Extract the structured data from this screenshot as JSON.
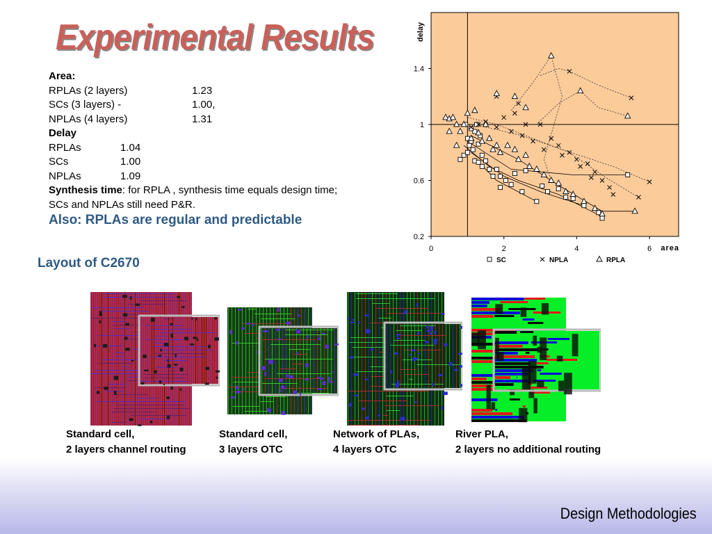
{
  "slide": {
    "title": "Experimental Results",
    "footer": "Design Methodologies"
  },
  "stats": {
    "area_heading": "Area:",
    "area_rows": [
      {
        "label": "RPLAs (2 layers)",
        "value": "1.23"
      },
      {
        "label": "SCs (3 layers) -",
        "value": "1.00,"
      },
      {
        "label": "NPLAs (4 layers)",
        "value": "1.31"
      }
    ],
    "delay_heading": "Delay",
    "delay_rows": [
      {
        "label": "RPLAs",
        "value": "1.04"
      },
      {
        "label": "SCs",
        "value": "1.00"
      },
      {
        "label": "NPLAs",
        "value": "1.09"
      }
    ],
    "synthesis_label": "Synthesis time",
    "synthesis_text": ": for RPLA , synthesis time equals design time;",
    "synthesis_text2": "SCs and NPLAs still need P&R.",
    "also": "Also: RPLAs are regular and predictable"
  },
  "layout_section": {
    "title": "Layout of C2670",
    "captions": [
      {
        "line1": "Standard cell,",
        "line2": "2 layers channel routing"
      },
      {
        "line1": "Standard cell,",
        "line2": "3 layers OTC"
      },
      {
        "line1": "Network of PLAs,",
        "line2": "4 layers OTC"
      },
      {
        "line1": "River PLA,",
        "line2": "2 layers no additional routing"
      }
    ]
  },
  "chart_data": {
    "type": "scatter",
    "xlabel": "area",
    "ylabel": "delay",
    "xlim": [
      0,
      6.8
    ],
    "ylim": [
      0.2,
      1.8
    ],
    "xticks": [
      0,
      2,
      4,
      6
    ],
    "yticks": [
      0.2,
      0.6,
      1,
      1.4
    ],
    "x_tick_labels": [
      "0",
      "2",
      "4",
      "6"
    ],
    "y_tick_labels": [
      "0.2",
      "0.6",
      "1",
      "1.4"
    ],
    "reference_lines": {
      "x": 1,
      "y": 1
    },
    "background_color": "#fccb9a",
    "legend_position": "bottom",
    "series": [
      {
        "name": "SC",
        "marker": "square",
        "points": [
          [
            0.8,
            0.75
          ],
          [
            0.9,
            0.78
          ],
          [
            1,
            0.8
          ],
          [
            1.05,
            0.85
          ],
          [
            1.1,
            0.88
          ],
          [
            1.15,
            0.82
          ],
          [
            1.2,
            0.95
          ],
          [
            1.2,
            0.74
          ],
          [
            1.3,
            0.86
          ],
          [
            1.3,
            0.73
          ],
          [
            1.4,
            0.78
          ],
          [
            1.4,
            0.7
          ],
          [
            1.5,
            0.74
          ],
          [
            1.6,
            0.68
          ],
          [
            1.7,
            0.63
          ],
          [
            1.8,
            0.68
          ],
          [
            1.9,
            0.55
          ],
          [
            1.9,
            0.63
          ],
          [
            2.05,
            0.6
          ],
          [
            2.2,
            0.57
          ],
          [
            2.3,
            0.65
          ],
          [
            2.5,
            0.52
          ],
          [
            2.6,
            0.67
          ],
          [
            2.9,
            0.45
          ],
          [
            3.05,
            0.56
          ],
          [
            3.2,
            0.52
          ],
          [
            3.5,
            0.54
          ],
          [
            3.7,
            0.48
          ],
          [
            3.9,
            0.47
          ],
          [
            4.2,
            0.42
          ],
          [
            4.6,
            0.37
          ],
          [
            4.7,
            0.33
          ],
          [
            5.4,
            0.64
          ],
          [
            1.0,
            0.9
          ],
          [
            1.1,
            0.97
          ],
          [
            1.25,
            1.0
          ],
          [
            0.95,
            1.0
          ],
          [
            1.35,
            0.92
          ]
        ]
      },
      {
        "name": "NPLA",
        "marker": "x",
        "points": [
          [
            1.1,
            0.98
          ],
          [
            1.3,
            1.0
          ],
          [
            1.5,
            1.02
          ],
          [
            1.8,
            0.98
          ],
          [
            2,
            1.05
          ],
          [
            2.2,
            0.95
          ],
          [
            2.3,
            1.08
          ],
          [
            2.5,
            0.92
          ],
          [
            2.6,
            1.0
          ],
          [
            2.8,
            0.88
          ],
          [
            3,
            1.0
          ],
          [
            3.1,
            0.82
          ],
          [
            3.3,
            0.9
          ],
          [
            3.5,
            0.85
          ],
          [
            3.6,
            0.78
          ],
          [
            3.8,
            0.8
          ],
          [
            4.0,
            0.75
          ],
          [
            4.1,
            0.7
          ],
          [
            4.3,
            0.72
          ],
          [
            4.5,
            0.66
          ],
          [
            4.7,
            0.6
          ],
          [
            4.9,
            0.55
          ],
          [
            5.0,
            0.5
          ],
          [
            5.7,
            0.48
          ],
          [
            6,
            0.59
          ],
          [
            3.8,
            1.38
          ],
          [
            5.5,
            1.19
          ],
          [
            1.8,
            1.2
          ],
          [
            2.4,
            1.15
          ],
          [
            4.4,
            0.62
          ]
        ]
      },
      {
        "name": "RPLA",
        "marker": "triangle",
        "points": [
          [
            0.4,
            1.05
          ],
          [
            0.5,
            1.04
          ],
          [
            0.6,
            1.05
          ],
          [
            0.7,
            1.0
          ],
          [
            0.8,
            0.95
          ],
          [
            0.9,
            1.0
          ],
          [
            1.0,
            1.08
          ],
          [
            1.1,
            0.9
          ],
          [
            1.2,
            1.1
          ],
          [
            1.3,
            0.94
          ],
          [
            1.4,
            0.88
          ],
          [
            1.5,
            1.0
          ],
          [
            1.6,
            0.9
          ],
          [
            1.7,
            0.82
          ],
          [
            1.8,
            0.85
          ],
          [
            1.9,
            0.8
          ],
          [
            2.1,
            0.85
          ],
          [
            2.3,
            0.82
          ],
          [
            2.4,
            0.75
          ],
          [
            2.6,
            0.78
          ],
          [
            2.7,
            0.7
          ],
          [
            2.9,
            0.68
          ],
          [
            3.1,
            0.64
          ],
          [
            3.3,
            0.6
          ],
          [
            3.5,
            0.58
          ],
          [
            3.7,
            0.52
          ],
          [
            3.9,
            0.5
          ],
          [
            4.2,
            0.45
          ],
          [
            4.5,
            0.4
          ],
          [
            4.7,
            0.36
          ],
          [
            5.6,
            0.38
          ],
          [
            3.3,
            1.49
          ],
          [
            4.1,
            1.24
          ],
          [
            5.4,
            1.06
          ],
          [
            1.8,
            1.22
          ],
          [
            2.3,
            1.2
          ],
          [
            2.6,
            1.12
          ],
          [
            0.7,
            0.85
          ],
          [
            0.5,
            0.95
          ]
        ]
      }
    ],
    "traces": [
      {
        "style": "solid",
        "points": [
          [
            0.9,
            0.85
          ],
          [
            1.6,
            0.7
          ],
          [
            2.4,
            0.6
          ],
          [
            3.5,
            0.5
          ],
          [
            4.7,
            0.34
          ]
        ]
      },
      {
        "style": "solid",
        "points": [
          [
            1.1,
            0.8
          ],
          [
            2.0,
            0.63
          ],
          [
            3.0,
            0.52
          ],
          [
            4.2,
            0.42
          ]
        ]
      },
      {
        "style": "solid",
        "points": [
          [
            1.0,
            0.88
          ],
          [
            2.2,
            0.68
          ],
          [
            3.9,
            0.64
          ],
          [
            5.4,
            0.64
          ]
        ]
      },
      {
        "style": "solid",
        "points": [
          [
            1.2,
            0.76
          ],
          [
            1.8,
            0.6
          ],
          [
            2.9,
            0.45
          ]
        ]
      },
      {
        "style": "dotted",
        "points": [
          [
            1.0,
            1.05
          ],
          [
            1.8,
            1.0
          ],
          [
            2.8,
            0.9
          ],
          [
            3.8,
            0.8
          ],
          [
            4.8,
            0.62
          ],
          [
            5.7,
            0.48
          ]
        ]
      },
      {
        "style": "dotted",
        "points": [
          [
            1.2,
            1.0
          ],
          [
            2.5,
            0.92
          ],
          [
            3.6,
            0.82
          ],
          [
            5.0,
            0.7
          ],
          [
            6.0,
            0.59
          ]
        ]
      },
      {
        "style": "dotted",
        "points": [
          [
            2.2,
            1.1
          ],
          [
            2.8,
            1.3
          ],
          [
            3.3,
            1.49
          ],
          [
            3.6,
            1.2
          ],
          [
            3.1,
            0.75
          ],
          [
            3.3,
            0.6
          ]
        ]
      },
      {
        "style": "dotted",
        "points": [
          [
            3.0,
            1.35
          ],
          [
            3.5,
            1.4
          ],
          [
            3.8,
            1.38
          ],
          [
            4.6,
            1.28
          ],
          [
            5.5,
            1.19
          ]
        ]
      },
      {
        "style": "dotted",
        "points": [
          [
            2.9,
            1.0
          ],
          [
            3.5,
            1.15
          ],
          [
            4.1,
            1.24
          ],
          [
            4.6,
            1.12
          ],
          [
            5.4,
            1.06
          ]
        ]
      },
      {
        "style": "solid",
        "points": [
          [
            1.1,
            0.92
          ],
          [
            2.4,
            0.75
          ],
          [
            3.6,
            0.55
          ],
          [
            4.7,
            0.38
          ],
          [
            5.6,
            0.38
          ]
        ]
      }
    ]
  },
  "layout_images": [
    {
      "name": "standard-cell-2layer",
      "base": "#c0282c",
      "accent1": "#4a2bc8",
      "accent2": "#5a1f6e",
      "detail": "#1b1b1b"
    },
    {
      "name": "standard-cell-3layer",
      "base": "#133d16",
      "accent1": "#38d32a",
      "accent2": "#c0282c",
      "detail": "#5a2bd0"
    },
    {
      "name": "network-of-plas",
      "base": "#0e2e10",
      "accent1": "#2fd13a",
      "accent2": "#c0282c",
      "detail": "#2b2bd0"
    },
    {
      "name": "river-pla",
      "base": "#05ee27",
      "accent1": "#0b0bd8",
      "accent2": "#e21717",
      "detail": "#0a0a0a"
    }
  ]
}
